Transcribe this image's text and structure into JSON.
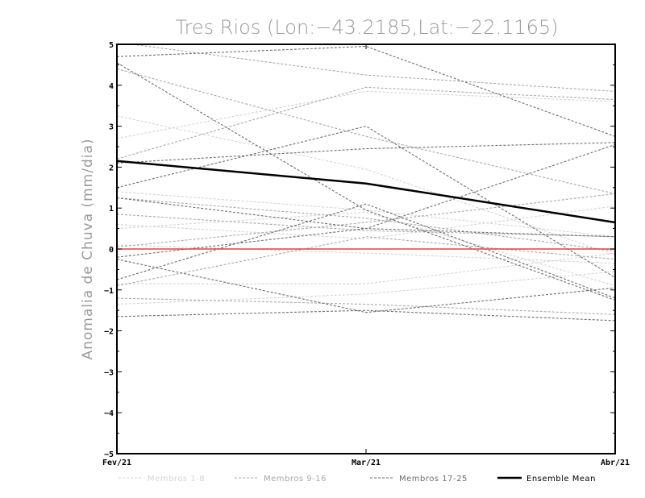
{
  "chart_data": {
    "type": "line",
    "title": "Tres Rios (Lon:−43.2185,Lat:−22.1165)",
    "xlabel": "",
    "ylabel": "Anomalia de Chuva (mm/dia)",
    "categories": [
      "Fev/21",
      "Mar/21",
      "Abr/21"
    ],
    "ylim": [
      -5,
      5
    ],
    "yticks": [
      "5",
      "4",
      "3",
      "2",
      "1",
      "0",
      "−1",
      "−2",
      "−3",
      "−4",
      "−5"
    ],
    "ytick_values": [
      5,
      4,
      3,
      2,
      1,
      0,
      -1,
      -2,
      -3,
      -4,
      -5
    ],
    "reference_line": {
      "value": 0,
      "color": "#e8403a"
    },
    "legend": [
      {
        "label": "Membros 1-8",
        "color": "#d4d4d4",
        "dashed": true
      },
      {
        "label": "Membros 9-16",
        "color": "#a9a9a9",
        "dashed": true
      },
      {
        "label": "Membros 17-25",
        "color": "#6e6e6e",
        "dashed": true
      },
      {
        "label": "Ensemble Mean",
        "color": "#000000",
        "dashed": false
      }
    ],
    "series": [
      {
        "name": "Membro 1",
        "group": 0,
        "values": [
          3.25,
          1.95,
          -0.15
        ]
      },
      {
        "name": "Membro 2",
        "group": 0,
        "values": [
          2.7,
          3.85,
          3.6
        ]
      },
      {
        "name": "Membro 3",
        "group": 0,
        "values": [
          1.4,
          0.95,
          0.3
        ]
      },
      {
        "name": "Membro 4",
        "group": 0,
        "values": [
          0.6,
          0.25,
          1.05
        ]
      },
      {
        "name": "Membro 5",
        "group": 0,
        "values": [
          0.1,
          -0.1,
          -0.35
        ]
      },
      {
        "name": "Membro 6",
        "group": 0,
        "values": [
          -0.85,
          -0.85,
          -0.1
        ]
      },
      {
        "name": "Membro 7",
        "group": 0,
        "values": [
          -1.35,
          -1.1,
          -0.55
        ]
      },
      {
        "name": "Membro 8",
        "group": 0,
        "values": [
          0.5,
          0.9,
          -0.9
        ]
      },
      {
        "name": "Membro 9",
        "group": 1,
        "values": [
          5.05,
          4.25,
          3.85
        ]
      },
      {
        "name": "Membro 10",
        "group": 1,
        "values": [
          4.4,
          2.75,
          1.35
        ]
      },
      {
        "name": "Membro 11",
        "group": 1,
        "values": [
          2.2,
          3.95,
          3.65
        ]
      },
      {
        "name": "Membro 12",
        "group": 1,
        "values": [
          1.25,
          0.75,
          -0.05
        ]
      },
      {
        "name": "Membro 13",
        "group": 1,
        "values": [
          0.85,
          0.45,
          0.3
        ]
      },
      {
        "name": "Membro 14",
        "group": 1,
        "values": [
          0.05,
          0.65,
          1.35
        ]
      },
      {
        "name": "Membro 15",
        "group": 1,
        "values": [
          -1.2,
          -1.35,
          -1.6
        ]
      },
      {
        "name": "Membro 16",
        "group": 1,
        "values": [
          -0.9,
          0.3,
          -0.25
        ]
      },
      {
        "name": "Membro 17",
        "group": 2,
        "values": [
          4.7,
          4.95,
          2.75
        ]
      },
      {
        "name": "Membro 18",
        "group": 2,
        "values": [
          4.55,
          0.95,
          -1.25
        ]
      },
      {
        "name": "Membro 19",
        "group": 2,
        "values": [
          2.1,
          2.45,
          2.6
        ]
      },
      {
        "name": "Membro 20",
        "group": 2,
        "values": [
          1.5,
          3.0,
          -0.7
        ]
      },
      {
        "name": "Membro 21",
        "group": 2,
        "values": [
          1.25,
          0.5,
          0.3
        ]
      },
      {
        "name": "Membro 22",
        "group": 2,
        "values": [
          -0.2,
          0.5,
          2.55
        ]
      },
      {
        "name": "Membro 23",
        "group": 2,
        "values": [
          -0.75,
          1.1,
          -1.2
        ]
      },
      {
        "name": "Membro 24",
        "group": 2,
        "values": [
          -1.65,
          -1.5,
          -1.75
        ]
      },
      {
        "name": "Membro 25",
        "group": 2,
        "values": [
          -0.25,
          -1.55,
          -0.95
        ]
      },
      {
        "name": "Ensemble Mean",
        "group": 3,
        "values": [
          2.15,
          1.6,
          0.65
        ]
      }
    ]
  }
}
